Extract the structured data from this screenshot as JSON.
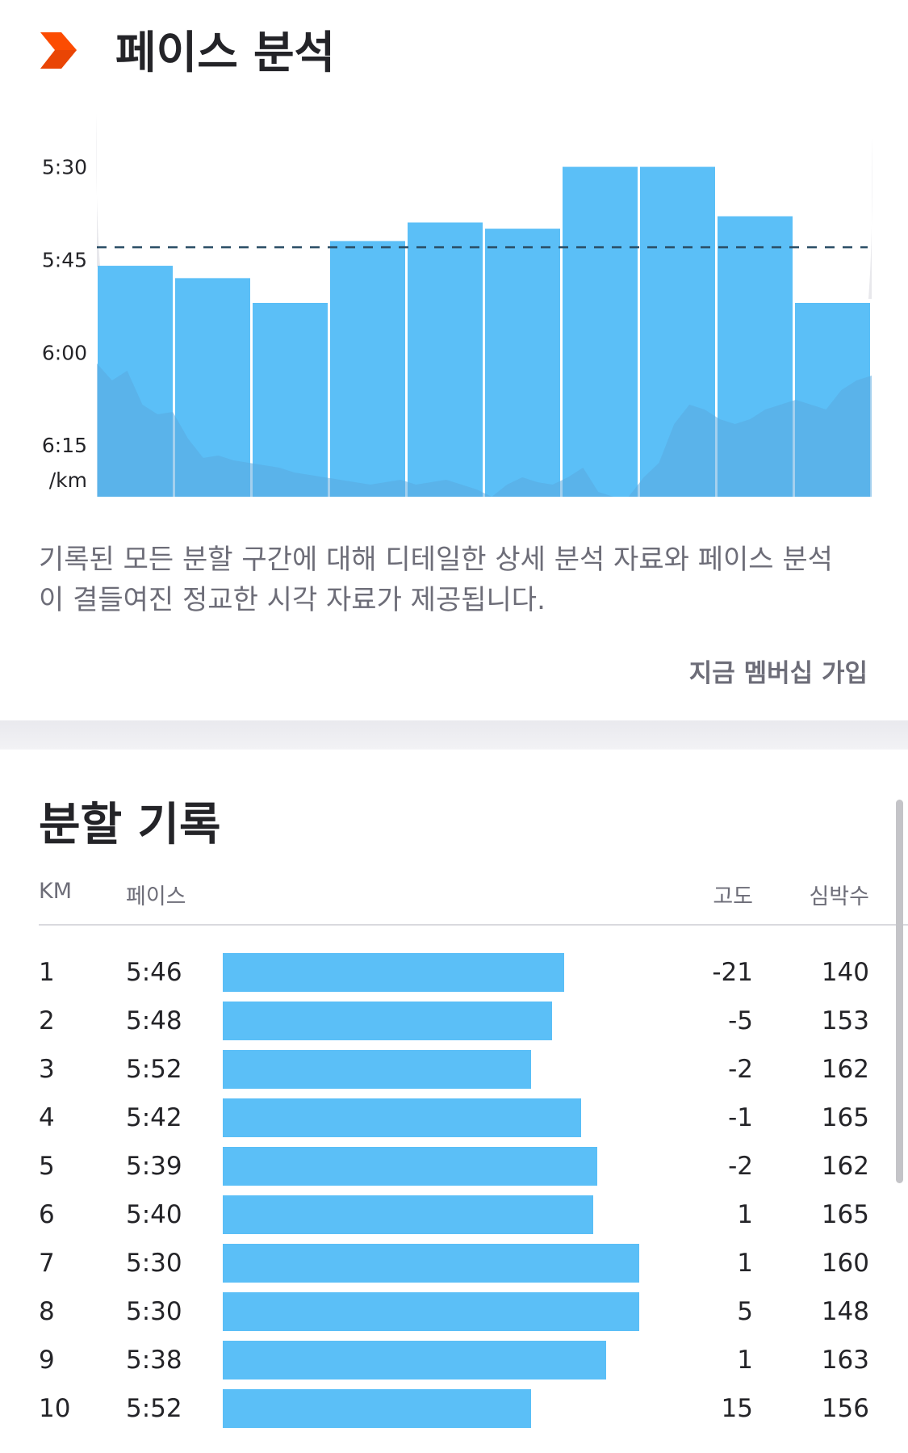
{
  "pace_analysis": {
    "title": "페이스 분석",
    "description": "기록된 모든 분할 구간에 대해 디테일한 상세 분석 자료와 페이스 분석이 결들여진 정교한 시각 자료가 제공됩니다.",
    "join_label": "지금 멤버십 가입",
    "colors": {
      "brand": "#fc4c02",
      "bar": "#5bbff7",
      "area": "#5aa9e0",
      "average_line": "#2b4e66"
    },
    "chart_data": {
      "type": "bar",
      "categories": [
        1,
        2,
        3,
        4,
        5,
        6,
        7,
        8,
        9,
        10
      ],
      "values": [
        "5:46",
        "5:48",
        "5:52",
        "5:42",
        "5:39",
        "5:40",
        "5:30",
        "5:30",
        "5:38",
        "5:52"
      ],
      "ytick_labels": [
        "5:30",
        "5:45",
        "6:00",
        "6:15"
      ],
      "unit_label": "/km",
      "average": "5:43",
      "ylim": [
        "5:20",
        "6:24"
      ]
    }
  },
  "splits": {
    "title": "분할 기록",
    "headers": {
      "km": "KM",
      "pace": "페이스",
      "elevation": "고도",
      "heart_rate": "심박수"
    },
    "rows": [
      {
        "km": "1",
        "pace": "5:46",
        "elevation": "-21",
        "heart_rate": "140",
        "bar_fraction": 0.82
      },
      {
        "km": "2",
        "pace": "5:48",
        "elevation": "-5",
        "heart_rate": "153",
        "bar_fraction": 0.79
      },
      {
        "km": "3",
        "pace": "5:52",
        "elevation": "-2",
        "heart_rate": "162",
        "bar_fraction": 0.74
      },
      {
        "km": "4",
        "pace": "5:42",
        "elevation": "-1",
        "heart_rate": "165",
        "bar_fraction": 0.86
      },
      {
        "km": "5",
        "pace": "5:39",
        "elevation": "-2",
        "heart_rate": "162",
        "bar_fraction": 0.9
      },
      {
        "km": "6",
        "pace": "5:40",
        "elevation": "1",
        "heart_rate": "165",
        "bar_fraction": 0.89
      },
      {
        "km": "7",
        "pace": "5:30",
        "elevation": "1",
        "heart_rate": "160",
        "bar_fraction": 1.0
      },
      {
        "km": "8",
        "pace": "5:30",
        "elevation": "5",
        "heart_rate": "148",
        "bar_fraction": 1.0
      },
      {
        "km": "9",
        "pace": "5:38",
        "elevation": "1",
        "heart_rate": "163",
        "bar_fraction": 0.92
      },
      {
        "km": "10",
        "pace": "5:52",
        "elevation": "15",
        "heart_rate": "156",
        "bar_fraction": 0.74
      }
    ]
  }
}
